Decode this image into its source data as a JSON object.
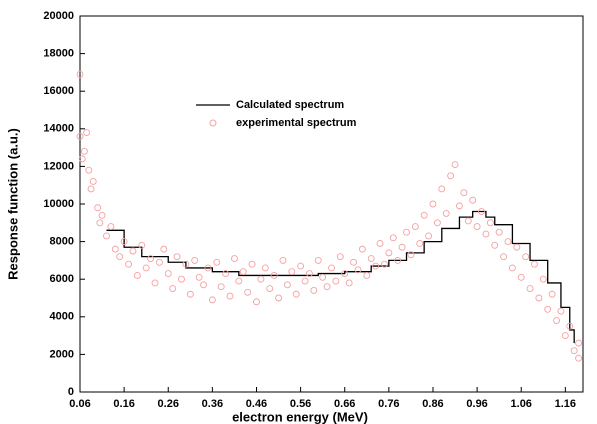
{
  "chart_data": {
    "type": "scatter",
    "x_label": "electron energy (MeV)",
    "y_label": "Response function (a.u.)",
    "xlim": [
      0.06,
      1.2
    ],
    "ylim": [
      0,
      20000
    ],
    "xticks": [
      0.06,
      0.16,
      0.26,
      0.36,
      0.46,
      0.56,
      0.66,
      0.76,
      0.86,
      0.96,
      1.06,
      1.16
    ],
    "yticks": [
      0,
      2000,
      4000,
      6000,
      8000,
      10000,
      12000,
      14000,
      16000,
      18000,
      20000
    ],
    "series": [
      {
        "name": "Calculated spectrum",
        "type": "line",
        "step": true,
        "color": "#000000",
        "x": [
          0.12,
          0.16,
          0.2,
          0.26,
          0.3,
          0.36,
          0.42,
          0.46,
          0.5,
          0.56,
          0.6,
          0.66,
          0.72,
          0.76,
          0.8,
          0.84,
          0.88,
          0.92,
          0.95,
          0.98,
          1.0,
          1.04,
          1.08,
          1.12,
          1.15,
          1.17,
          1.18
        ],
        "values": [
          8600,
          7700,
          7200,
          6900,
          6600,
          6400,
          6200,
          6200,
          6200,
          6200,
          6300,
          6400,
          6700,
          7000,
          7400,
          8000,
          8700,
          9300,
          9600,
          9300,
          8900,
          7900,
          7000,
          5800,
          4500,
          3300,
          2600
        ]
      },
      {
        "name": "experimental spectrum",
        "type": "scatter",
        "color": "#f4a0a0",
        "x": [
          0.06,
          0.06,
          0.065,
          0.07,
          0.075,
          0.08,
          0.085,
          0.09,
          0.1,
          0.105,
          0.11,
          0.12,
          0.13,
          0.14,
          0.15,
          0.16,
          0.17,
          0.18,
          0.19,
          0.2,
          0.21,
          0.22,
          0.23,
          0.24,
          0.25,
          0.26,
          0.27,
          0.28,
          0.29,
          0.3,
          0.31,
          0.32,
          0.33,
          0.34,
          0.35,
          0.36,
          0.37,
          0.38,
          0.39,
          0.4,
          0.41,
          0.42,
          0.43,
          0.44,
          0.45,
          0.46,
          0.47,
          0.48,
          0.49,
          0.5,
          0.51,
          0.52,
          0.53,
          0.54,
          0.55,
          0.56,
          0.57,
          0.58,
          0.59,
          0.6,
          0.61,
          0.62,
          0.63,
          0.64,
          0.65,
          0.66,
          0.67,
          0.68,
          0.69,
          0.7,
          0.71,
          0.72,
          0.73,
          0.74,
          0.75,
          0.76,
          0.77,
          0.78,
          0.79,
          0.8,
          0.81,
          0.82,
          0.83,
          0.84,
          0.85,
          0.86,
          0.87,
          0.88,
          0.89,
          0.9,
          0.91,
          0.92,
          0.93,
          0.94,
          0.95,
          0.96,
          0.97,
          0.98,
          0.99,
          1.0,
          1.01,
          1.02,
          1.03,
          1.04,
          1.05,
          1.06,
          1.07,
          1.08,
          1.09,
          1.1,
          1.11,
          1.12,
          1.13,
          1.14,
          1.15,
          1.16,
          1.17,
          1.18,
          1.19,
          1.19
        ],
        "values": [
          16900,
          13600,
          12400,
          12800,
          13800,
          11800,
          10800,
          11200,
          9800,
          9000,
          9400,
          8300,
          8800,
          7600,
          7200,
          8000,
          6800,
          7500,
          6200,
          7800,
          6600,
          7100,
          5800,
          6900,
          7600,
          6300,
          5500,
          7200,
          6000,
          6800,
          5200,
          7000,
          6100,
          5700,
          6600,
          4900,
          6900,
          5600,
          6300,
          5100,
          7100,
          5900,
          6400,
          5300,
          6800,
          4800,
          6000,
          6600,
          5500,
          6200,
          5000,
          7000,
          5700,
          6400,
          5200,
          6700,
          5900,
          6300,
          5400,
          7000,
          6100,
          5600,
          6600,
          5900,
          7200,
          6300,
          5800,
          6900,
          6500,
          7600,
          6200,
          7100,
          6700,
          7900,
          6800,
          7400,
          8200,
          7000,
          7700,
          8500,
          7300,
          8800,
          7900,
          9400,
          8300,
          10000,
          9000,
          10800,
          9500,
          11500,
          12100,
          9900,
          10600,
          9100,
          10200,
          8800,
          9600,
          8400,
          9000,
          7800,
          8500,
          7200,
          8000,
          6600,
          7700,
          6100,
          7200,
          5500,
          6800,
          5000,
          6000,
          4400,
          5200,
          3800,
          4300,
          3000,
          3500,
          2200,
          1800,
          2600
        ]
      }
    ]
  }
}
